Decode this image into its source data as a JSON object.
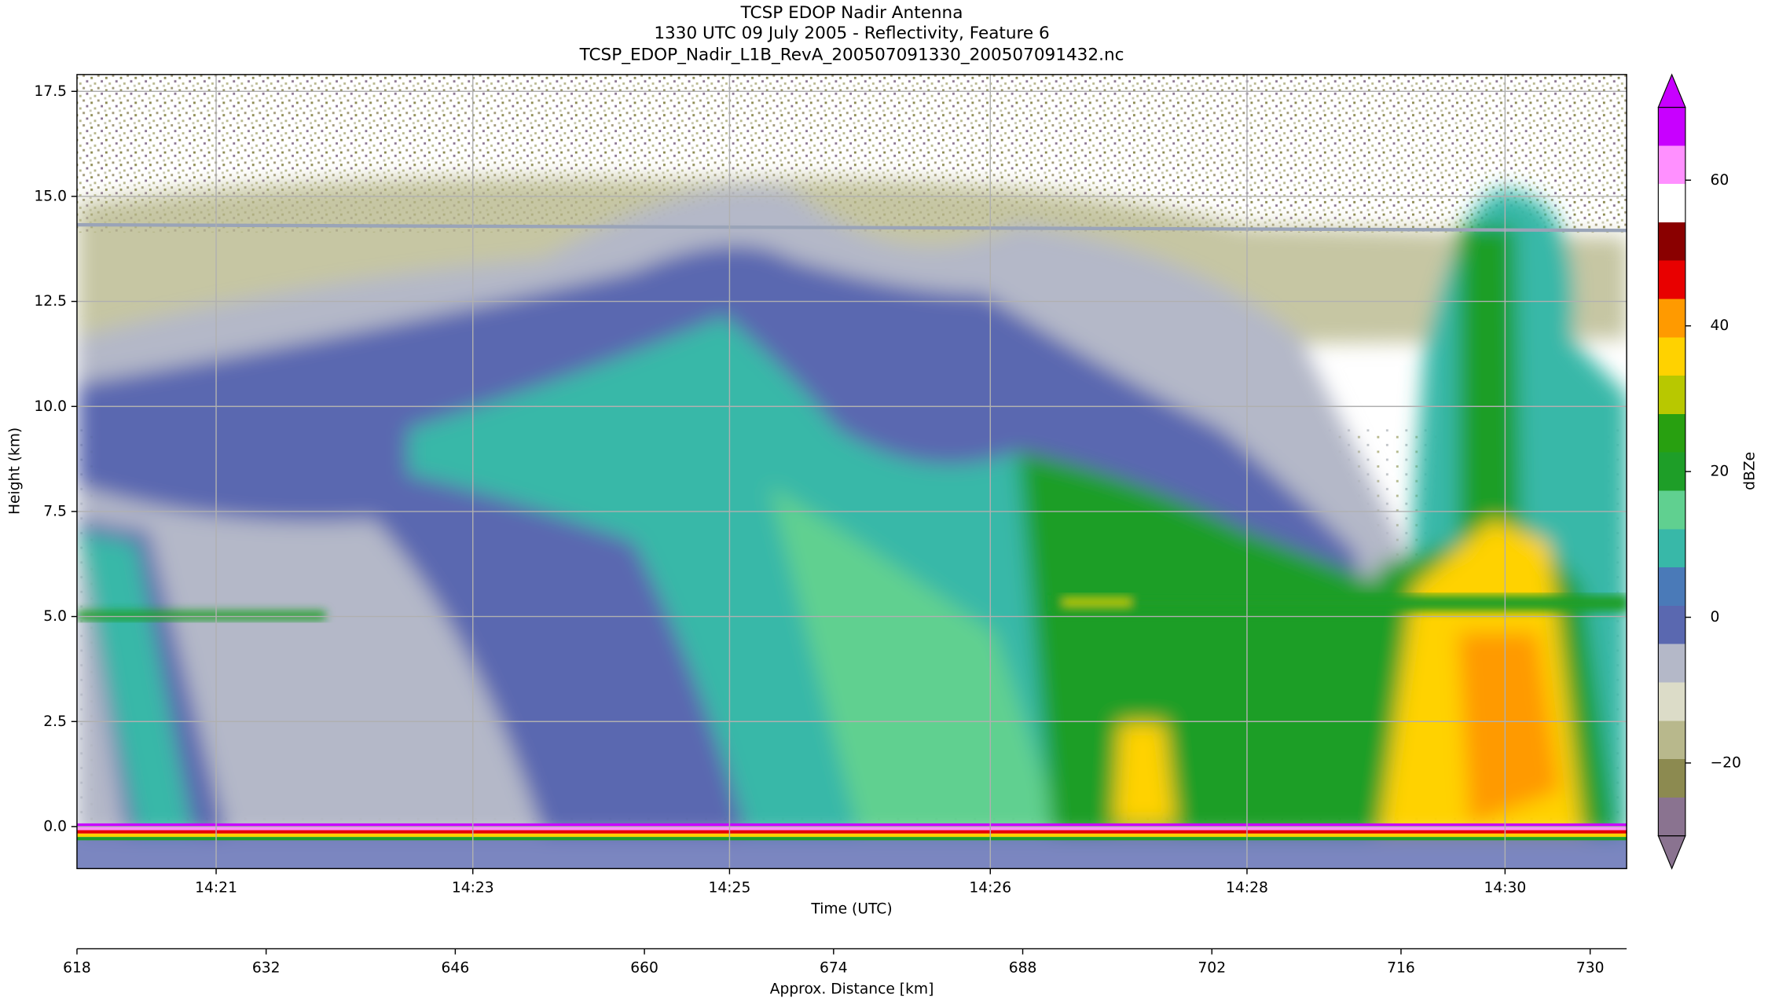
{
  "chart_data": {
    "type": "heatmap",
    "title": "TCSP EDOP Nadir Antenna",
    "subtitle": "1330 UTC 09 July 2005 - Reflectivity, Feature 6",
    "filename": "TCSP_EDOP_Nadir_L1B_RevA_200507091330_200507091432.nc",
    "xlabel": "Time (UTC)",
    "ylabel": "Height (km)",
    "x2label": "Approx. Distance [km]",
    "xlim": [
      618,
      732.7
    ],
    "ylim": [
      -1,
      17.9
    ],
    "xticks": [
      {
        "value": 628.3,
        "label": "14:21"
      },
      {
        "value": 647.3,
        "label": "14:23"
      },
      {
        "value": 666.3,
        "label": "14:25"
      },
      {
        "value": 685.6,
        "label": "14:26"
      },
      {
        "value": 704.6,
        "label": "14:28"
      },
      {
        "value": 723.7,
        "label": "14:30"
      }
    ],
    "x2ticks": [
      618,
      632,
      646,
      660,
      674,
      688,
      702,
      716,
      730
    ],
    "yticks": [
      {
        "value": 0,
        "label": "0.0"
      },
      2.5,
      {
        "value": 5,
        "label": "5.0"
      },
      7.5,
      {
        "value": 10,
        "label": "10.0"
      },
      12.5,
      {
        "value": 15,
        "label": "15.0"
      },
      17.5
    ],
    "grid": true,
    "colorbar": {
      "label": "dBZe",
      "lim": [
        -30,
        70
      ],
      "ticks": [
        {
          "value": -20,
          "label": "−20"
        },
        0,
        20,
        40,
        60
      ],
      "colors": [
        "#8a7390",
        "#8c8a50",
        "#b8b88c",
        "#dcdcc8",
        "#b4b8c8",
        "#5a68b0",
        "#4a7ab8",
        "#38b8a8",
        "#60d090",
        "#1e9e28",
        "#28a010",
        "#b8c800",
        "#ffd200",
        "#ff9a00",
        "#e80000",
        "#8a0000",
        "#ffffff",
        "#ff90ff",
        "#c800ff"
      ]
    }
  }
}
